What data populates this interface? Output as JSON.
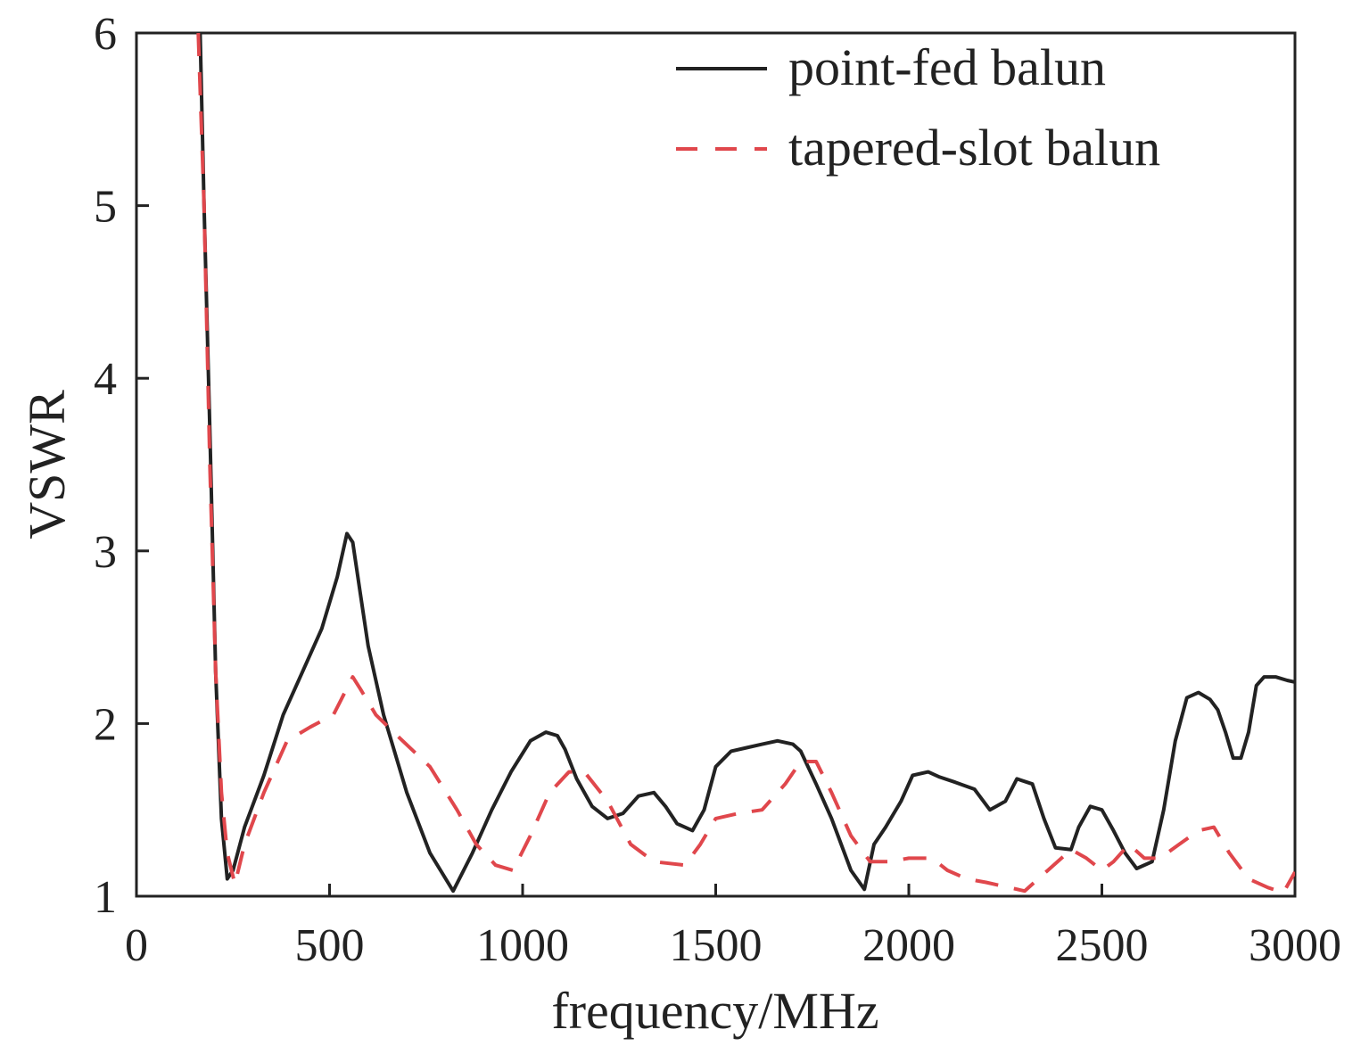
{
  "chart_data": {
    "type": "line",
    "title": "",
    "xlabel": "frequency/MHz",
    "ylabel": "VSWR",
    "xlim": [
      0,
      3000
    ],
    "ylim": [
      1,
      6
    ],
    "xticks": [
      0,
      500,
      1000,
      1500,
      2000,
      2500,
      3000
    ],
    "xtick_labels": [
      "0",
      "500",
      "1000",
      "1500",
      "2000",
      "2500",
      "3000"
    ],
    "yticks": [
      1,
      2,
      3,
      4,
      5,
      6
    ],
    "ytick_labels": [
      "1",
      "2",
      "3",
      "4",
      "5",
      "6"
    ],
    "grid": false,
    "legend_position": "top-right",
    "series": [
      {
        "name": "point-fed balun",
        "color": "#222222",
        "dash": "solid",
        "x": [
          165,
          175,
          190,
          205,
          220,
          235,
          250,
          280,
          330,
          380,
          430,
          480,
          520,
          545,
          560,
          580,
          600,
          640,
          700,
          760,
          820,
          870,
          920,
          970,
          1020,
          1060,
          1090,
          1110,
          1140,
          1180,
          1220,
          1260,
          1300,
          1340,
          1370,
          1400,
          1440,
          1470,
          1500,
          1540,
          1580,
          1620,
          1660,
          1700,
          1720,
          1760,
          1800,
          1850,
          1885,
          1910,
          1940,
          1980,
          2010,
          2050,
          2080,
          2120,
          2170,
          2210,
          2250,
          2280,
          2320,
          2350,
          2380,
          2420,
          2440,
          2470,
          2500,
          2530,
          2560,
          2590,
          2630,
          2660,
          2690,
          2720,
          2750,
          2780,
          2800,
          2820,
          2840,
          2860,
          2880,
          2900,
          2920,
          2950,
          2980,
          3000
        ],
        "y": [
          6.0,
          5.0,
          3.7,
          2.3,
          1.45,
          1.1,
          1.15,
          1.4,
          1.7,
          2.05,
          2.3,
          2.55,
          2.85,
          3.1,
          3.05,
          2.75,
          2.45,
          2.05,
          1.6,
          1.25,
          1.03,
          1.25,
          1.5,
          1.72,
          1.9,
          1.95,
          1.93,
          1.85,
          1.68,
          1.52,
          1.45,
          1.48,
          1.58,
          1.6,
          1.52,
          1.42,
          1.38,
          1.5,
          1.75,
          1.84,
          1.86,
          1.88,
          1.9,
          1.88,
          1.84,
          1.65,
          1.45,
          1.15,
          1.04,
          1.3,
          1.4,
          1.55,
          1.7,
          1.72,
          1.69,
          1.66,
          1.62,
          1.5,
          1.55,
          1.68,
          1.65,
          1.45,
          1.28,
          1.27,
          1.4,
          1.52,
          1.5,
          1.38,
          1.25,
          1.16,
          1.2,
          1.5,
          1.9,
          2.15,
          2.18,
          2.14,
          2.08,
          1.95,
          1.8,
          1.8,
          1.95,
          2.22,
          2.27,
          2.27,
          2.25,
          2.24
        ]
      },
      {
        "name": "tapered-slot balun",
        "color": "#e0474c",
        "dash": "dashed",
        "x": [
          160,
          175,
          190,
          205,
          220,
          235,
          255,
          280,
          330,
          390,
          450,
          510,
          560,
          580,
          620,
          680,
          760,
          830,
          880,
          930,
          975,
          1020,
          1070,
          1120,
          1160,
          1220,
          1280,
          1340,
          1420,
          1460,
          1500,
          1560,
          1620,
          1680,
          1720,
          1760,
          1800,
          1850,
          1900,
          1950,
          2000,
          2060,
          2100,
          2150,
          2200,
          2260,
          2300,
          2360,
          2420,
          2460,
          2500,
          2530,
          2570,
          2610,
          2650,
          2700,
          2750,
          2790,
          2830,
          2880,
          2930,
          2970,
          3000
        ],
        "y": [
          6.0,
          5.0,
          3.5,
          2.3,
          1.6,
          1.25,
          1.07,
          1.3,
          1.6,
          1.9,
          1.98,
          2.05,
          2.27,
          2.2,
          2.05,
          1.92,
          1.75,
          1.5,
          1.3,
          1.18,
          1.15,
          1.35,
          1.6,
          1.72,
          1.72,
          1.55,
          1.3,
          1.2,
          1.18,
          1.3,
          1.45,
          1.48,
          1.5,
          1.65,
          1.78,
          1.78,
          1.6,
          1.35,
          1.2,
          1.2,
          1.22,
          1.22,
          1.15,
          1.1,
          1.08,
          1.05,
          1.03,
          1.15,
          1.27,
          1.22,
          1.15,
          1.2,
          1.3,
          1.22,
          1.22,
          1.3,
          1.38,
          1.4,
          1.25,
          1.1,
          1.05,
          1.02,
          1.14
        ]
      }
    ]
  }
}
